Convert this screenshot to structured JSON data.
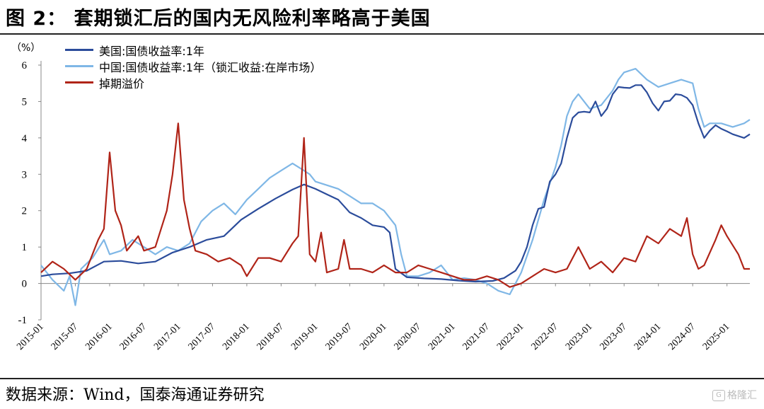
{
  "figure": {
    "title": "图 2：   套期锁汇后的国内无风险利率略高于美国",
    "source": "数据来源：Wind，国泰海通证券研究",
    "watermark": "格隆汇"
  },
  "chart_data": {
    "type": "line",
    "ylabel": "（%）",
    "ylim": [
      -1,
      6
    ],
    "yticks": [
      "-1",
      "0",
      "1",
      "2",
      "3",
      "4",
      "5",
      "6"
    ],
    "xlim": [
      "2015-01",
      "2025-05"
    ],
    "xticks": [
      "2015-01",
      "2015-07",
      "2016-01",
      "2016-07",
      "2017-01",
      "2017-07",
      "2018-01",
      "2018-07",
      "2019-01",
      "2019-07",
      "2020-01",
      "2020-07",
      "2021-01",
      "2021-07",
      "2022-01",
      "2022-07",
      "2023-01",
      "2023-07",
      "2024-01",
      "2024-07",
      "2025-01"
    ],
    "legend_position": "top-left",
    "grid": false,
    "series": [
      {
        "name": "美国:国债收益率:1年",
        "color": "#2b4c9b",
        "points": [
          [
            "2015-01",
            0.2
          ],
          [
            "2015-03",
            0.25
          ],
          [
            "2015-06",
            0.28
          ],
          [
            "2015-09",
            0.35
          ],
          [
            "2015-12",
            0.6
          ],
          [
            "2016-03",
            0.62
          ],
          [
            "2016-06",
            0.55
          ],
          [
            "2016-09",
            0.6
          ],
          [
            "2016-12",
            0.85
          ],
          [
            "2017-03",
            1.0
          ],
          [
            "2017-06",
            1.2
          ],
          [
            "2017-09",
            1.3
          ],
          [
            "2017-12",
            1.75
          ],
          [
            "2018-03",
            2.05
          ],
          [
            "2018-06",
            2.33
          ],
          [
            "2018-09",
            2.58
          ],
          [
            "2018-11",
            2.72
          ],
          [
            "2019-01",
            2.6
          ],
          [
            "2019-03",
            2.45
          ],
          [
            "2019-05",
            2.3
          ],
          [
            "2019-07",
            1.95
          ],
          [
            "2019-09",
            1.8
          ],
          [
            "2019-11",
            1.6
          ],
          [
            "2020-01",
            1.55
          ],
          [
            "2020-02",
            1.4
          ],
          [
            "2020-03",
            0.4
          ],
          [
            "2020-05",
            0.17
          ],
          [
            "2020-08",
            0.14
          ],
          [
            "2020-11",
            0.12
          ],
          [
            "2021-02",
            0.08
          ],
          [
            "2021-05",
            0.05
          ],
          [
            "2021-08",
            0.07
          ],
          [
            "2021-10",
            0.15
          ],
          [
            "2021-12",
            0.35
          ],
          [
            "2022-01",
            0.6
          ],
          [
            "2022-02",
            1.0
          ],
          [
            "2022-03",
            1.6
          ],
          [
            "2022-04",
            2.05
          ],
          [
            "2022-05",
            2.1
          ],
          [
            "2022-06",
            2.8
          ],
          [
            "2022-07",
            3.0
          ],
          [
            "2022-08",
            3.3
          ],
          [
            "2022-09",
            4.0
          ],
          [
            "2022-10",
            4.55
          ],
          [
            "2022-11",
            4.7
          ],
          [
            "2022-12",
            4.72
          ],
          [
            "2023-01",
            4.7
          ],
          [
            "2023-02",
            5.0
          ],
          [
            "2023-03",
            4.6
          ],
          [
            "2023-04",
            4.8
          ],
          [
            "2023-05",
            5.2
          ],
          [
            "2023-06",
            5.4
          ],
          [
            "2023-07",
            5.38
          ],
          [
            "2023-08",
            5.37
          ],
          [
            "2023-09",
            5.45
          ],
          [
            "2023-10",
            5.45
          ],
          [
            "2023-11",
            5.25
          ],
          [
            "2023-12",
            4.95
          ],
          [
            "2024-01",
            4.75
          ],
          [
            "2024-02",
            5.0
          ],
          [
            "2024-03",
            5.02
          ],
          [
            "2024-04",
            5.2
          ],
          [
            "2024-05",
            5.18
          ],
          [
            "2024-06",
            5.1
          ],
          [
            "2024-07",
            4.9
          ],
          [
            "2024-08",
            4.4
          ],
          [
            "2024-09",
            4.0
          ],
          [
            "2024-10",
            4.2
          ],
          [
            "2024-11",
            4.35
          ],
          [
            "2024-12",
            4.25
          ],
          [
            "2025-01",
            4.18
          ],
          [
            "2025-02",
            4.1
          ],
          [
            "2025-03",
            4.05
          ],
          [
            "2025-04",
            4.0
          ],
          [
            "2025-05",
            4.1
          ]
        ]
      },
      {
        "name": "中国:国债收益率:1年（锁汇收益:在岸市场）",
        "color": "#7fb7e6",
        "points": [
          [
            "2015-01",
            0.5
          ],
          [
            "2015-03",
            0.1
          ],
          [
            "2015-05",
            -0.2
          ],
          [
            "2015-06",
            0.2
          ],
          [
            "2015-07",
            -0.6
          ],
          [
            "2015-08",
            0.4
          ],
          [
            "2015-10",
            0.7
          ],
          [
            "2015-12",
            1.2
          ],
          [
            "2016-01",
            0.8
          ],
          [
            "2016-03",
            0.9
          ],
          [
            "2016-05",
            1.2
          ],
          [
            "2016-07",
            1.0
          ],
          [
            "2016-09",
            0.8
          ],
          [
            "2016-11",
            1.0
          ],
          [
            "2017-01",
            0.9
          ],
          [
            "2017-03",
            1.1
          ],
          [
            "2017-05",
            1.7
          ],
          [
            "2017-07",
            2.0
          ],
          [
            "2017-09",
            2.2
          ],
          [
            "2017-11",
            1.9
          ],
          [
            "2018-01",
            2.3
          ],
          [
            "2018-03",
            2.6
          ],
          [
            "2018-05",
            2.9
          ],
          [
            "2018-07",
            3.1
          ],
          [
            "2018-09",
            3.3
          ],
          [
            "2018-11",
            3.1
          ],
          [
            "2018-12",
            3.0
          ],
          [
            "2019-01",
            2.8
          ],
          [
            "2019-03",
            2.7
          ],
          [
            "2019-05",
            2.6
          ],
          [
            "2019-07",
            2.4
          ],
          [
            "2019-09",
            2.2
          ],
          [
            "2019-11",
            2.2
          ],
          [
            "2020-01",
            2.0
          ],
          [
            "2020-03",
            1.6
          ],
          [
            "2020-04",
            0.8
          ],
          [
            "2020-05",
            0.2
          ],
          [
            "2020-07",
            0.2
          ],
          [
            "2020-09",
            0.3
          ],
          [
            "2020-11",
            0.5
          ],
          [
            "2021-01",
            0.1
          ],
          [
            "2021-03",
            0.15
          ],
          [
            "2021-05",
            0.1
          ],
          [
            "2021-07",
            0.0
          ],
          [
            "2021-09",
            -0.2
          ],
          [
            "2021-11",
            -0.3
          ],
          [
            "2022-01",
            0.3
          ],
          [
            "2022-03",
            1.2
          ],
          [
            "2022-05",
            2.3
          ],
          [
            "2022-07",
            3.2
          ],
          [
            "2022-08",
            3.8
          ],
          [
            "2022-09",
            4.6
          ],
          [
            "2022-10",
            5.0
          ],
          [
            "2022-11",
            5.2
          ],
          [
            "2023-01",
            4.8
          ],
          [
            "2023-03",
            4.9
          ],
          [
            "2023-05",
            5.3
          ],
          [
            "2023-06",
            5.6
          ],
          [
            "2023-07",
            5.8
          ],
          [
            "2023-09",
            5.9
          ],
          [
            "2023-11",
            5.6
          ],
          [
            "2024-01",
            5.4
          ],
          [
            "2024-03",
            5.5
          ],
          [
            "2024-05",
            5.6
          ],
          [
            "2024-07",
            5.5
          ],
          [
            "2024-08",
            4.8
          ],
          [
            "2024-09",
            4.3
          ],
          [
            "2024-10",
            4.4
          ],
          [
            "2024-12",
            4.4
          ],
          [
            "2025-02",
            4.3
          ],
          [
            "2025-04",
            4.4
          ],
          [
            "2025-05",
            4.5
          ]
        ]
      },
      {
        "name": "掉期溢价",
        "color": "#b02418",
        "points": [
          [
            "2015-01",
            0.3
          ],
          [
            "2015-03",
            0.6
          ],
          [
            "2015-05",
            0.4
          ],
          [
            "2015-07",
            0.1
          ],
          [
            "2015-09",
            0.4
          ],
          [
            "2015-11",
            1.2
          ],
          [
            "2015-12",
            1.5
          ],
          [
            "2016-01",
            3.6
          ],
          [
            "2016-02",
            2.0
          ],
          [
            "2016-03",
            1.6
          ],
          [
            "2016-04",
            0.9
          ],
          [
            "2016-06",
            1.3
          ],
          [
            "2016-07",
            0.9
          ],
          [
            "2016-09",
            1.0
          ],
          [
            "2016-11",
            2.0
          ],
          [
            "2016-12",
            3.0
          ],
          [
            "2017-01",
            4.4
          ],
          [
            "2017-02",
            2.3
          ],
          [
            "2017-03",
            1.5
          ],
          [
            "2017-04",
            0.9
          ],
          [
            "2017-06",
            0.8
          ],
          [
            "2017-08",
            0.6
          ],
          [
            "2017-10",
            0.7
          ],
          [
            "2017-12",
            0.5
          ],
          [
            "2018-01",
            0.2
          ],
          [
            "2018-03",
            0.7
          ],
          [
            "2018-05",
            0.7
          ],
          [
            "2018-07",
            0.6
          ],
          [
            "2018-09",
            1.1
          ],
          [
            "2018-10",
            1.3
          ],
          [
            "2018-11",
            4.0
          ],
          [
            "2018-12",
            0.8
          ],
          [
            "2019-01",
            0.6
          ],
          [
            "2019-02",
            1.4
          ],
          [
            "2019-03",
            0.3
          ],
          [
            "2019-05",
            0.4
          ],
          [
            "2019-06",
            1.2
          ],
          [
            "2019-07",
            0.4
          ],
          [
            "2019-09",
            0.4
          ],
          [
            "2019-11",
            0.3
          ],
          [
            "2020-01",
            0.5
          ],
          [
            "2020-03",
            0.3
          ],
          [
            "2020-05",
            0.3
          ],
          [
            "2020-07",
            0.5
          ],
          [
            "2020-09",
            0.4
          ],
          [
            "2020-11",
            0.3
          ],
          [
            "2021-01",
            0.2
          ],
          [
            "2021-03",
            0.1
          ],
          [
            "2021-05",
            0.1
          ],
          [
            "2021-07",
            0.2
          ],
          [
            "2021-09",
            0.1
          ],
          [
            "2021-11",
            -0.1
          ],
          [
            "2022-01",
            0.0
          ],
          [
            "2022-03",
            0.2
          ],
          [
            "2022-05",
            0.4
          ],
          [
            "2022-07",
            0.3
          ],
          [
            "2022-09",
            0.4
          ],
          [
            "2022-11",
            1.0
          ],
          [
            "2023-01",
            0.4
          ],
          [
            "2023-03",
            0.6
          ],
          [
            "2023-05",
            0.3
          ],
          [
            "2023-07",
            0.7
          ],
          [
            "2023-09",
            0.6
          ],
          [
            "2023-11",
            1.3
          ],
          [
            "2024-01",
            1.1
          ],
          [
            "2024-03",
            1.5
          ],
          [
            "2024-05",
            1.3
          ],
          [
            "2024-06",
            1.8
          ],
          [
            "2024-07",
            0.8
          ],
          [
            "2024-08",
            0.4
          ],
          [
            "2024-09",
            0.5
          ],
          [
            "2024-11",
            1.2
          ],
          [
            "2024-12",
            1.6
          ],
          [
            "2025-01",
            1.3
          ],
          [
            "2025-03",
            0.8
          ],
          [
            "2025-04",
            0.4
          ],
          [
            "2025-05",
            0.4
          ]
        ]
      }
    ]
  }
}
